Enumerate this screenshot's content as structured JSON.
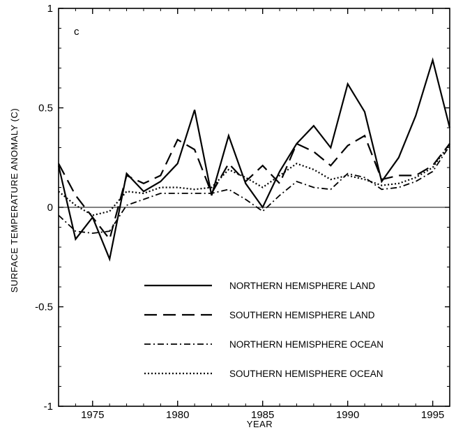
{
  "chart_data": {
    "type": "line",
    "panel_label": "c",
    "title": "",
    "xlabel": "YEAR",
    "ylabel": "SURFACE TEMPERATURE ANOMALY (C)",
    "xlim": [
      1973,
      1996
    ],
    "ylim": [
      -1,
      1
    ],
    "x_ticks": [
      1975,
      1980,
      1985,
      1990,
      1995
    ],
    "y_ticks": [
      -1,
      -0.5,
      0,
      0.5,
      1
    ],
    "y_tick_labels": [
      "-1",
      "-0.5",
      "0",
      "0.5",
      "1"
    ],
    "zero_line": true,
    "grid": false,
    "legend_position": "lower-right",
    "x": [
      1973,
      1974,
      1975,
      1976,
      1977,
      1978,
      1979,
      1980,
      1981,
      1982,
      1983,
      1984,
      1985,
      1986,
      1987,
      1988,
      1989,
      1990,
      1991,
      1992,
      1993,
      1994,
      1995,
      1996
    ],
    "series": [
      {
        "name": "NORTHERN HEMISPHERE LAND",
        "dash": "solid",
        "values": [
          0.21,
          -0.16,
          -0.05,
          -0.26,
          0.17,
          0.08,
          0.13,
          0.22,
          0.49,
          0.06,
          0.36,
          0.12,
          0.0,
          0.18,
          0.32,
          0.41,
          0.3,
          0.62,
          0.48,
          0.13,
          0.25,
          0.46,
          0.74,
          0.4
        ]
      },
      {
        "name": "SOUTHERN HEMISPHERE LAND",
        "dash": "long-dash",
        "values": [
          0.22,
          0.06,
          -0.05,
          -0.16,
          0.16,
          0.12,
          0.16,
          0.34,
          0.29,
          0.07,
          0.22,
          0.13,
          0.21,
          0.12,
          0.32,
          0.28,
          0.21,
          0.31,
          0.36,
          0.14,
          0.16,
          0.16,
          0.21,
          0.32
        ]
      },
      {
        "name": "NORTHERN HEMISPHERE OCEAN",
        "dash": "dash-dot",
        "values": [
          -0.04,
          -0.12,
          -0.13,
          -0.12,
          0.01,
          0.04,
          0.07,
          0.07,
          0.07,
          0.07,
          0.09,
          0.04,
          -0.02,
          0.06,
          0.13,
          0.1,
          0.09,
          0.17,
          0.15,
          0.09,
          0.1,
          0.13,
          0.18,
          0.31
        ]
      },
      {
        "name": "SOUTHERN HEMISPHERE OCEAN",
        "dash": "dotted",
        "values": [
          0.08,
          0.01,
          -0.04,
          -0.02,
          0.08,
          0.07,
          0.1,
          0.1,
          0.09,
          0.1,
          0.19,
          0.15,
          0.1,
          0.16,
          0.22,
          0.19,
          0.14,
          0.16,
          0.14,
          0.11,
          0.12,
          0.15,
          0.2,
          0.32
        ]
      }
    ]
  }
}
